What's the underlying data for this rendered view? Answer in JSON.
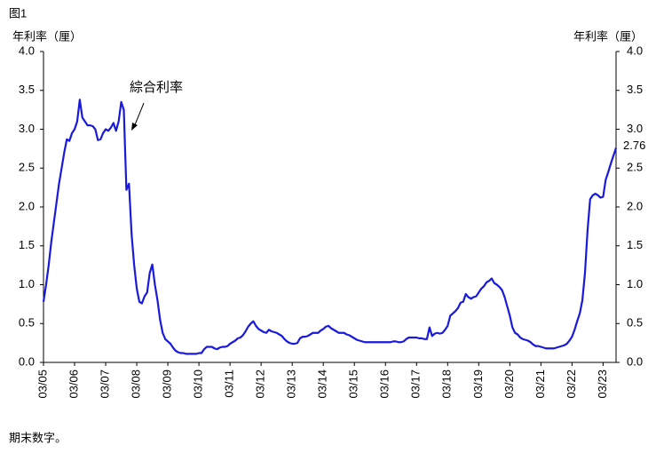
{
  "chart_data": {
    "type": "line",
    "figure_label": "图1",
    "y_label": "年利率（厘）",
    "y2_label": "年利率（厘）",
    "footnote": "期末数字。",
    "categories": [
      "03/05",
      null,
      null,
      null,
      null,
      null,
      null,
      null,
      null,
      null,
      null,
      null,
      "03/06",
      null,
      null,
      null,
      null,
      null,
      null,
      null,
      null,
      null,
      null,
      null,
      "03/07",
      null,
      null,
      null,
      null,
      null,
      null,
      null,
      null,
      null,
      null,
      null,
      "03/08",
      null,
      null,
      null,
      null,
      null,
      null,
      null,
      null,
      null,
      null,
      null,
      "03/09",
      null,
      null,
      null,
      null,
      null,
      null,
      null,
      null,
      null,
      null,
      null,
      "03/10",
      null,
      null,
      null,
      null,
      null,
      null,
      null,
      null,
      null,
      null,
      null,
      "03/11",
      null,
      null,
      null,
      null,
      null,
      null,
      null,
      null,
      null,
      null,
      null,
      "03/12",
      null,
      null,
      null,
      null,
      null,
      null,
      null,
      null,
      null,
      null,
      null,
      "03/13",
      null,
      null,
      null,
      null,
      null,
      null,
      null,
      null,
      null,
      null,
      null,
      "03/14",
      null,
      null,
      null,
      null,
      null,
      null,
      null,
      null,
      null,
      null,
      null,
      "03/15",
      null,
      null,
      null,
      null,
      null,
      null,
      null,
      null,
      null,
      null,
      null,
      "03/16",
      null,
      null,
      null,
      null,
      null,
      null,
      null,
      null,
      null,
      null,
      null,
      "03/17",
      null,
      null,
      null,
      null,
      null,
      null,
      null,
      null,
      null,
      null,
      null,
      "03/18",
      null,
      null,
      null,
      null,
      null,
      null,
      null,
      null,
      null,
      null,
      null,
      "03/19",
      null,
      null,
      null,
      null,
      null,
      null,
      null,
      null,
      null,
      null,
      null,
      "03/20",
      null,
      null,
      null,
      null,
      null,
      null,
      null,
      null,
      null,
      null,
      null,
      "03/21",
      null,
      null,
      null,
      null,
      null,
      null,
      null,
      null,
      null,
      null,
      null,
      "03/22",
      null,
      null,
      null,
      null,
      null,
      null,
      null,
      null,
      null,
      null,
      null,
      "03/23",
      null,
      null,
      null,
      null,
      null
    ],
    "series": [
      {
        "name": "綜合利率",
        "color": "#1a1adc",
        "values": [
          0.78,
          1.0,
          1.25,
          1.55,
          1.8,
          2.05,
          2.3,
          2.5,
          2.7,
          2.87,
          2.85,
          2.95,
          3.0,
          3.1,
          3.38,
          3.15,
          3.1,
          3.05,
          3.05,
          3.04,
          3.0,
          2.86,
          2.87,
          2.95,
          3.0,
          2.98,
          3.02,
          3.08,
          2.98,
          3.1,
          3.35,
          3.25,
          2.22,
          2.3,
          1.65,
          1.25,
          0.95,
          0.78,
          0.76,
          0.85,
          0.9,
          1.15,
          1.26,
          1.0,
          0.8,
          0.55,
          0.38,
          0.3,
          0.27,
          0.24,
          0.19,
          0.15,
          0.13,
          0.12,
          0.12,
          0.11,
          0.11,
          0.11,
          0.11,
          0.11,
          0.12,
          0.12,
          0.17,
          0.2,
          0.2,
          0.2,
          0.18,
          0.17,
          0.19,
          0.2,
          0.2,
          0.21,
          0.24,
          0.26,
          0.28,
          0.31,
          0.32,
          0.35,
          0.4,
          0.46,
          0.5,
          0.53,
          0.47,
          0.43,
          0.41,
          0.39,
          0.38,
          0.42,
          0.4,
          0.39,
          0.38,
          0.36,
          0.34,
          0.3,
          0.27,
          0.25,
          0.24,
          0.24,
          0.25,
          0.31,
          0.33,
          0.33,
          0.34,
          0.36,
          0.38,
          0.38,
          0.38,
          0.41,
          0.43,
          0.46,
          0.47,
          0.44,
          0.42,
          0.4,
          0.38,
          0.38,
          0.38,
          0.36,
          0.35,
          0.33,
          0.31,
          0.29,
          0.28,
          0.27,
          0.26,
          0.26,
          0.26,
          0.26,
          0.26,
          0.26,
          0.26,
          0.26,
          0.26,
          0.26,
          0.26,
          0.27,
          0.27,
          0.26,
          0.26,
          0.27,
          0.3,
          0.32,
          0.32,
          0.32,
          0.32,
          0.31,
          0.31,
          0.3,
          0.3,
          0.45,
          0.34,
          0.37,
          0.38,
          0.37,
          0.38,
          0.42,
          0.47,
          0.6,
          0.63,
          0.66,
          0.7,
          0.77,
          0.78,
          0.88,
          0.84,
          0.82,
          0.84,
          0.85,
          0.9,
          0.95,
          0.98,
          1.03,
          1.05,
          1.08,
          1.02,
          1.0,
          0.97,
          0.93,
          0.84,
          0.72,
          0.6,
          0.45,
          0.38,
          0.36,
          0.32,
          0.3,
          0.29,
          0.28,
          0.26,
          0.23,
          0.21,
          0.21,
          0.2,
          0.19,
          0.18,
          0.18,
          0.18,
          0.18,
          0.19,
          0.2,
          0.21,
          0.22,
          0.24,
          0.28,
          0.33,
          0.42,
          0.53,
          0.63,
          0.8,
          1.15,
          1.7,
          2.1,
          2.15,
          2.17,
          2.15,
          2.12,
          2.13,
          2.35,
          2.45,
          2.56,
          2.66,
          2.76
        ]
      }
    ],
    "ylim": [
      0,
      4
    ],
    "yticks": [
      {
        "value": 0,
        "label": "0.0"
      },
      {
        "value": 0.5,
        "label": "0.5"
      },
      {
        "value": 1,
        "label": "1.0"
      },
      {
        "value": 1.5,
        "label": "1.5"
      },
      {
        "value": 2,
        "label": "2.0"
      },
      {
        "value": 2.5,
        "label": "2.5"
      },
      {
        "value": 3,
        "label": "3.0"
      },
      {
        "value": 3.5,
        "label": "3.5"
      },
      {
        "value": 4,
        "label": "4.0"
      }
    ],
    "y2lim": [
      0,
      4
    ],
    "y2ticks": [
      {
        "value": 0,
        "label": "0.0"
      },
      {
        "value": 0.5,
        "label": "0.5"
      },
      {
        "value": 1,
        "label": "1.0"
      },
      {
        "value": 1.5,
        "label": "1.5"
      },
      {
        "value": 2,
        "label": "2.0"
      },
      {
        "value": 2.5,
        "label": "2.5"
      },
      {
        "value": 3,
        "label": "3.0"
      },
      {
        "value": 3.5,
        "label": "3.5"
      },
      {
        "value": 4,
        "label": "4.0"
      }
    ],
    "grid": false
  }
}
